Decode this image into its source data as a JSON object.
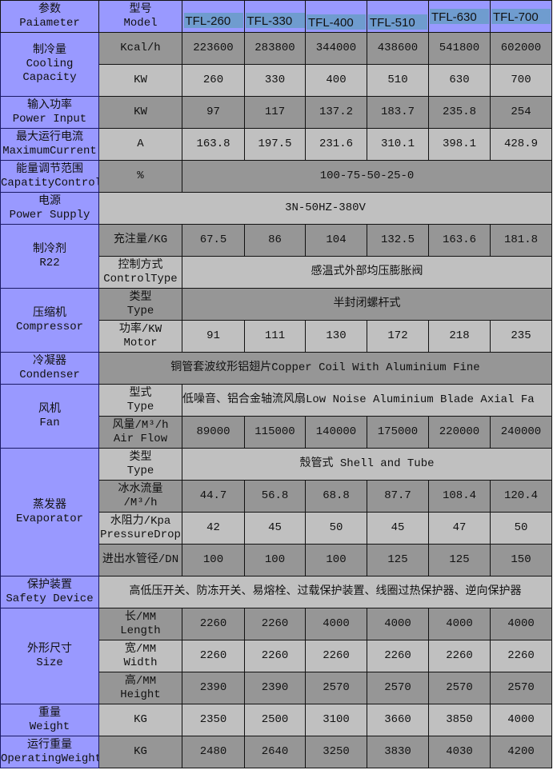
{
  "colors": {
    "group": "#9999ff",
    "row_dark": "#969696",
    "row_light": "#c0c0c0",
    "model_highlight": "#6f9ccf"
  },
  "header": {
    "param_cn": "参数",
    "param_en": "Paiameter",
    "model_cn": "型号",
    "model_en": "Model",
    "models": [
      "TFL-260",
      "TFL-330",
      "TFL-400",
      "TFL-510",
      "TFL-630",
      "TFL-700"
    ]
  },
  "groups": [
    {
      "cn": "制冷量",
      "en": [
        "Cooling",
        "Capacity"
      ],
      "rows": [
        {
          "sub": [
            "Kcal/h"
          ],
          "values": [
            "223600",
            "283800",
            "344000",
            "438600",
            "541800",
            "602000"
          ]
        },
        {
          "sub": [
            "KW"
          ],
          "values": [
            "260",
            "330",
            "400",
            "510",
            "630",
            "700"
          ]
        }
      ]
    },
    {
      "cn": "输入功率",
      "en": [
        "Power Input"
      ],
      "rows": [
        {
          "sub": [
            "KW"
          ],
          "values": [
            "97",
            "117",
            "137.2",
            "183.7",
            "235.8",
            "254"
          ]
        }
      ]
    },
    {
      "cn": "最大运行电流",
      "en": [
        "MaximumCurrent"
      ],
      "rows": [
        {
          "sub": [
            "A"
          ],
          "values": [
            "163.8",
            "197.5",
            "231.6",
            "310.1",
            "398.1",
            "428.9"
          ]
        }
      ]
    },
    {
      "cn": "能量调节范围",
      "en": [
        "CapatityControl"
      ],
      "rows": [
        {
          "sub": [
            "%"
          ],
          "span": "100-75-50-25-0"
        }
      ]
    },
    {
      "cn": "电源",
      "en": [
        "Power Supply"
      ],
      "rows": [
        {
          "fullspan": "3N-50HZ-380V"
        }
      ]
    },
    {
      "cn": "制冷剂",
      "en": [
        "R22"
      ],
      "rows": [
        {
          "sub": [
            "充注量/KG"
          ],
          "values": [
            "67.5",
            "86",
            "104",
            "132.5",
            "163.6",
            "181.8"
          ]
        },
        {
          "sub": [
            "控制方式",
            "ControlType"
          ],
          "span": "感温式外部均压膨胀阀"
        }
      ]
    },
    {
      "cn": "压缩机",
      "en": [
        "Compressor"
      ],
      "rows": [
        {
          "sub": [
            "类型",
            "Type"
          ],
          "span": "半封闭螺杆式"
        },
        {
          "sub": [
            "功率/KW",
            "Motor"
          ],
          "values": [
            "91",
            "111",
            "130",
            "172",
            "218",
            "235"
          ]
        }
      ]
    },
    {
      "cn": "冷凝器",
      "en": [
        "Condenser"
      ],
      "rows": [
        {
          "fullspan": "铜管套波纹形铝翅片Copper Coil With Aluminium Fine"
        }
      ]
    },
    {
      "cn": "风机",
      "en": [
        "Fan"
      ],
      "rows": [
        {
          "sub": [
            "型式",
            "Type"
          ],
          "span": "低噪音、铝合金轴流风扇Low Noise Aluminium Blade Axial Fa"
        },
        {
          "sub": [
            "风量/M³/h",
            "Air Flow"
          ],
          "values": [
            "89000",
            "115000",
            "140000",
            "175000",
            "220000",
            "240000"
          ]
        }
      ]
    },
    {
      "cn": "蒸发器",
      "en": [
        "Evaporator"
      ],
      "rows": [
        {
          "sub": [
            "类型",
            "Type"
          ],
          "span": "殼管式  Shell and Tube"
        },
        {
          "sub": [
            "冰水流量",
            "/M³/h"
          ],
          "values": [
            "44.7",
            "56.8",
            "68.8",
            "87.7",
            "108.4",
            "120.4"
          ]
        },
        {
          "sub": [
            "水阻力/Kpa",
            "PressureDrop"
          ],
          "values": [
            "42",
            "45",
            "50",
            "45",
            "47",
            "50"
          ]
        },
        {
          "sub": [
            "进出水管径/DN"
          ],
          "values": [
            "100",
            "100",
            "100",
            "125",
            "125",
            "150"
          ]
        }
      ]
    },
    {
      "cn": "保护装置",
      "en": [
        "Safety Device"
      ],
      "rows": [
        {
          "fullspan": "高低压开关、防冻开关、易熔栓、过载保护装置、线圈过热保护器、逆向保护器"
        }
      ]
    },
    {
      "cn": "外形尺寸",
      "en": [
        "Size"
      ],
      "rows": [
        {
          "sub": [
            "长/MM",
            "Length"
          ],
          "values": [
            "2260",
            "2260",
            "4000",
            "4000",
            "4000",
            "4000"
          ]
        },
        {
          "sub": [
            "宽/MM",
            "Width"
          ],
          "values": [
            "2260",
            "2260",
            "2260",
            "2260",
            "2260",
            "2260"
          ]
        },
        {
          "sub": [
            "高/MM",
            "Height"
          ],
          "values": [
            "2390",
            "2390",
            "2570",
            "2570",
            "2570",
            "2570"
          ]
        }
      ]
    },
    {
      "cn": "重量",
      "en": [
        "Weight"
      ],
      "rows": [
        {
          "sub": [
            "KG"
          ],
          "values": [
            "2350",
            "2500",
            "3100",
            "3660",
            "3850",
            "4000"
          ]
        }
      ]
    },
    {
      "cn": "运行重量",
      "en": [
        "OperatingWeight"
      ],
      "rows": [
        {
          "sub": [
            "KG"
          ],
          "values": [
            "2480",
            "2640",
            "3250",
            "3830",
            "4030",
            "4200"
          ]
        }
      ]
    }
  ]
}
